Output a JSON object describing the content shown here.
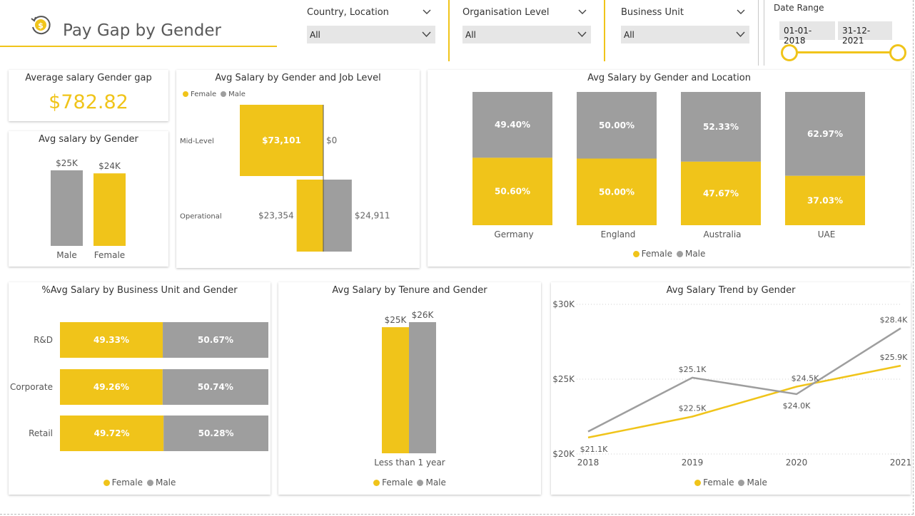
{
  "header": {
    "title": "Pay Gap by Gender",
    "logo_icon": "dollar-coin-refresh-icon"
  },
  "filters": {
    "country": {
      "label": "Country, Location",
      "value": "All"
    },
    "org_level": {
      "label": "Organisation Level",
      "value": "All"
    },
    "business_unit": {
      "label": "Business Unit",
      "value": "All"
    },
    "date_range": {
      "label": "Date Range",
      "start": "01-01-2018",
      "end": "31-12-2021"
    }
  },
  "colors": {
    "female": "#F0C41A",
    "male": "#9E9E9E",
    "accent": "#F0C41A"
  },
  "legend": {
    "female": "Female",
    "male": "Male"
  },
  "kpi": {
    "title": "Average salary Gender gap",
    "value": "$782.82"
  },
  "chart_data": [
    {
      "id": "avg-salary-by-gender",
      "type": "bar",
      "title": "Avg salary by Gender",
      "categories": [
        "Male",
        "Female"
      ],
      "values": [
        25000,
        24000
      ],
      "labels": [
        "$25K",
        "$24K"
      ],
      "colors": [
        "#9E9E9E",
        "#F0C41A"
      ],
      "ylim": [
        0,
        25000
      ]
    },
    {
      "id": "avg-salary-by-gender-job-level",
      "type": "bar",
      "title": "Avg Salary by Gender and Job Level",
      "categories": [
        "Mid-Level",
        "Operational"
      ],
      "series": [
        {
          "name": "Female",
          "values": [
            73101,
            23354
          ],
          "labels": [
            "$73,101",
            "$23,354"
          ]
        },
        {
          "name": "Male",
          "values": [
            0,
            24911
          ],
          "labels": [
            "$0",
            "$24,911"
          ]
        }
      ],
      "xlim": [
        0,
        73101
      ]
    },
    {
      "id": "avg-salary-by-gender-location",
      "type": "bar",
      "title": "Avg Salary by Gender and Location",
      "categories": [
        "Germany",
        "England",
        "Australia",
        "UAE"
      ],
      "series": [
        {
          "name": "Female",
          "values": [
            50.6,
            50.0,
            47.67,
            37.03
          ],
          "labels": [
            "50.60%",
            "50.00%",
            "47.67%",
            "37.03%"
          ]
        },
        {
          "name": "Male",
          "values": [
            49.4,
            50.0,
            52.33,
            62.97
          ],
          "labels": [
            "49.40%",
            "50.00%",
            "52.33%",
            "62.97%"
          ]
        }
      ],
      "ylim": [
        0,
        100
      ],
      "legend": "bottom"
    },
    {
      "id": "pct-avg-salary-by-business-unit",
      "type": "bar",
      "title": "%Avg Salary by Business Unit and Gender",
      "categories": [
        "R&D",
        "Corporate",
        "Retail"
      ],
      "series": [
        {
          "name": "Female",
          "values": [
            49.33,
            49.26,
            49.72
          ],
          "labels": [
            "49.33%",
            "49.26%",
            "49.72%"
          ]
        },
        {
          "name": "Male",
          "values": [
            50.67,
            50.74,
            50.28
          ],
          "labels": [
            "50.67%",
            "50.74%",
            "50.28%"
          ]
        }
      ],
      "xlim": [
        0,
        100
      ],
      "legend": "bottom"
    },
    {
      "id": "avg-salary-by-tenure",
      "type": "bar",
      "title": "Avg Salary by Tenure and Gender",
      "categories": [
        "Less than 1 year"
      ],
      "series": [
        {
          "name": "Female",
          "values": [
            25000
          ],
          "labels": [
            "$25K"
          ]
        },
        {
          "name": "Male",
          "values": [
            26000
          ],
          "labels": [
            "$26K"
          ]
        }
      ],
      "ylim": [
        0,
        26000
      ],
      "legend": "bottom"
    },
    {
      "id": "avg-salary-trend",
      "type": "line",
      "title": "Avg Salary Trend by Gender",
      "x": [
        "2018",
        "2019",
        "2020",
        "2021"
      ],
      "series": [
        {
          "name": "Female",
          "values": [
            21100,
            22500,
            24500,
            25900
          ],
          "labels": [
            "$21.1K",
            "$22.5K",
            "$24.5K",
            "$25.9K"
          ]
        },
        {
          "name": "Male",
          "values": [
            21500,
            25100,
            24000,
            28400
          ],
          "labels": [
            "",
            "$25.1K",
            "$24.0K",
            "$28.4K"
          ]
        }
      ],
      "yticks": [
        "$20K",
        "$25K",
        "$30K"
      ],
      "ylim": [
        20000,
        30000
      ],
      "grid": true,
      "legend": "bottom"
    }
  ]
}
